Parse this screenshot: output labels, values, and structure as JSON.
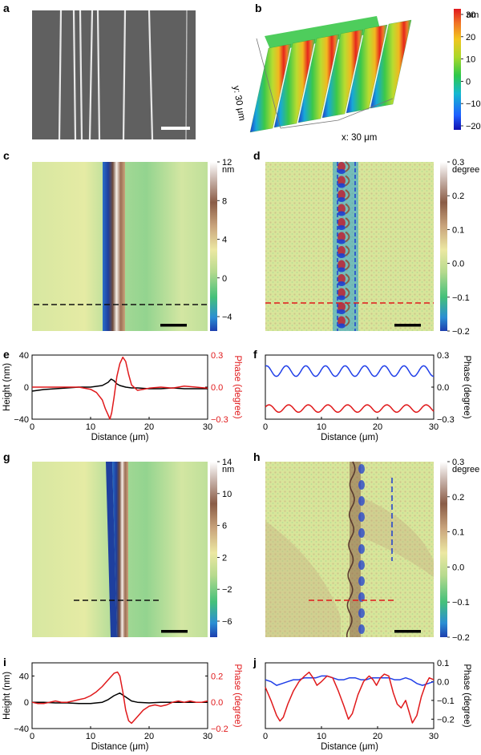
{
  "panel_letters": [
    "a",
    "b",
    "c",
    "d",
    "e",
    "f",
    "g",
    "h",
    "i",
    "j"
  ],
  "panel_b": {
    "xlabel": "x: 30 μm",
    "ylabel": "y: 30 μm",
    "colorbar_unit": "nm",
    "colorbar_ticks": [
      "30",
      "20",
      "10",
      "0",
      "−10",
      "−20"
    ]
  },
  "panel_c": {
    "colorbar_unit": "nm",
    "colorbar_ticks": [
      "12",
      "8",
      "4",
      "0",
      "−4"
    ]
  },
  "panel_d": {
    "colorbar_unit": "degree",
    "colorbar_ticks": [
      "0.3",
      "0.2",
      "0.1",
      "0.0",
      "−0.1",
      "−0.2"
    ]
  },
  "panel_g": {
    "colorbar_unit": "nm",
    "colorbar_ticks": [
      "14",
      "10",
      "6",
      "2",
      "−2",
      "−6"
    ]
  },
  "panel_h": {
    "colorbar_unit": "degree",
    "colorbar_ticks": [
      "0.3",
      "0.2",
      "0.1",
      "0.0",
      "−0.1",
      "−0.2"
    ]
  },
  "colors": {
    "height_line": "#000000",
    "phase_line": "#e0191b",
    "blue_line": "#1f3ee8"
  },
  "chart_data": [
    {
      "panel": "e",
      "type": "line",
      "xlabel": "Distance (μm)",
      "ylabel_left": "Height (nm)",
      "ylabel_right": "Phase (degree)",
      "xlim": [
        0,
        30
      ],
      "ylim_left": [
        -40,
        40
      ],
      "ylim_right": [
        -0.3,
        0.3
      ],
      "x_ticks": [
        "0",
        "10",
        "20",
        "30"
      ],
      "y_ticks_left": [
        "40",
        "0",
        "−40"
      ],
      "y_ticks_right": [
        "0.3",
        "0.0",
        "−0.3"
      ],
      "series": [
        {
          "axis": "left",
          "color": "#000000",
          "x": [
            0,
            2,
            4,
            6,
            8,
            10,
            11,
            12,
            13,
            13.5,
            14,
            14.5,
            15,
            16,
            17,
            18,
            20,
            22,
            24,
            26,
            28,
            30
          ],
          "y": [
            -5,
            -3,
            -2,
            -1,
            0,
            0,
            1,
            2,
            6,
            10,
            8,
            4,
            2,
            0,
            -1,
            -1,
            -2,
            -2,
            -1,
            -2,
            -2,
            -2
          ]
        },
        {
          "axis": "right",
          "color": "#e0191b",
          "x": [
            0,
            2,
            4,
            6,
            8,
            10,
            11,
            12,
            12.5,
            13,
            13.3,
            13.6,
            14,
            14.5,
            15,
            15.5,
            16,
            16.5,
            17,
            18,
            19,
            20,
            22,
            24,
            26,
            28,
            30
          ],
          "y": [
            0.0,
            0.0,
            0.0,
            0.0,
            0.0,
            -0.02,
            -0.05,
            -0.12,
            -0.2,
            -0.26,
            -0.3,
            -0.24,
            -0.1,
            0.1,
            0.22,
            0.28,
            0.24,
            0.12,
            0.02,
            -0.03,
            -0.02,
            -0.01,
            0.0,
            -0.01,
            0.01,
            0.0,
            -0.01
          ]
        }
      ]
    },
    {
      "panel": "f",
      "type": "line",
      "xlabel": "Distance (μm)",
      "ylabel_right": "Phase (degree)",
      "xlim": [
        0,
        30
      ],
      "ylim_right": [
        -0.3,
        0.3
      ],
      "x_ticks": [
        "0",
        "10",
        "20",
        "30"
      ],
      "y_ticks_right": [
        "0.3",
        "0.0",
        "−0.3"
      ],
      "series": [
        {
          "axis": "right",
          "color": "#1f3ee8",
          "wave": {
            "base": 0.15,
            "amplitude": 0.05,
            "period": 3.5,
            "phase": 1.2
          }
        },
        {
          "axis": "right",
          "color": "#e0191b",
          "wave": {
            "base": -0.2,
            "amplitude": 0.035,
            "period": 3.5,
            "phase": 0.4
          }
        }
      ]
    },
    {
      "panel": "i",
      "type": "line",
      "xlabel": "Distance (μm)",
      "ylabel_left": "Height (nm)",
      "ylabel_right": "Phase (degree)",
      "xlim": [
        0,
        30
      ],
      "ylim_left": [
        -40,
        60
      ],
      "ylim_right": [
        -0.2,
        0.3
      ],
      "x_ticks": [
        "0",
        "10",
        "20",
        "30"
      ],
      "y_ticks_left": [
        "40",
        "0",
        "−40"
      ],
      "y_ticks_right": [
        "0.2",
        "0.0",
        "−0.2"
      ],
      "series": [
        {
          "axis": "left",
          "color": "#000000",
          "x": [
            0,
            2,
            4,
            6,
            8,
            10,
            12,
            13,
            14,
            15,
            16,
            17,
            18,
            20,
            22,
            24,
            26,
            28,
            30
          ],
          "y": [
            0,
            0,
            -1,
            -1,
            -2,
            -2,
            0,
            4,
            10,
            14,
            8,
            2,
            0,
            -1,
            0,
            0,
            0,
            0,
            0
          ]
        },
        {
          "axis": "right",
          "color": "#e0191b",
          "x": [
            0,
            1,
            2,
            3,
            4,
            5,
            6,
            7,
            8,
            9,
            10,
            11,
            12,
            13,
            14,
            14.6,
            15,
            15.5,
            16,
            16.5,
            17,
            18,
            19,
            20,
            21,
            22,
            23,
            24,
            25,
            26,
            27,
            28,
            29,
            30
          ],
          "y": [
            0.0,
            -0.01,
            -0.01,
            0.0,
            0.01,
            0.0,
            0.0,
            0.01,
            0.02,
            0.03,
            0.05,
            0.08,
            0.12,
            0.17,
            0.22,
            0.23,
            0.2,
            0.08,
            -0.06,
            -0.14,
            -0.16,
            -0.11,
            -0.06,
            -0.03,
            -0.02,
            -0.03,
            -0.02,
            0.0,
            0.01,
            0.0,
            0.01,
            0.0,
            0.0,
            0.01
          ]
        }
      ]
    },
    {
      "panel": "j",
      "type": "line",
      "xlabel": "Distance (μm)",
      "ylabel_right": "Phase (degree)",
      "xlim": [
        0,
        30
      ],
      "ylim_right": [
        -0.25,
        0.1
      ],
      "x_ticks": [
        "0",
        "10",
        "20",
        "30"
      ],
      "y_ticks_right": [
        "0.1",
        "0.0",
        "−0.1",
        "−0.2"
      ],
      "series": [
        {
          "axis": "right",
          "color": "#1f3ee8",
          "x": [
            0,
            1,
            2,
            3,
            4,
            5,
            6,
            7,
            8,
            9,
            10,
            11,
            12,
            13,
            14,
            15,
            16,
            17,
            18,
            19,
            20,
            21,
            22,
            23,
            24,
            25,
            26,
            27,
            28,
            29,
            30
          ],
          "y": [
            0.01,
            0.0,
            -0.02,
            -0.01,
            0.0,
            0.01,
            0.01,
            0.02,
            0.02,
            0.02,
            0.03,
            0.03,
            0.02,
            0.01,
            0.01,
            0.02,
            0.02,
            0.01,
            0.01,
            0.02,
            0.02,
            0.02,
            0.02,
            0.01,
            0.01,
            0.02,
            0.01,
            -0.01,
            -0.02,
            -0.01,
            0.0
          ]
        },
        {
          "axis": "right",
          "color": "#e0191b",
          "x": [
            0,
            1,
            2,
            2.6,
            3.2,
            4,
            5,
            6,
            7,
            7.8,
            8.5,
            9.2,
            10,
            11,
            12,
            13,
            14,
            14.8,
            15.5,
            16.5,
            17.5,
            18.5,
            19.2,
            19.8,
            20.5,
            21.2,
            22,
            22.8,
            23.5,
            24.2,
            25,
            25.6,
            26.2,
            27,
            27.8,
            28.5,
            29.2,
            30
          ],
          "y": [
            -0.03,
            -0.1,
            -0.18,
            -0.21,
            -0.19,
            -0.12,
            -0.05,
            0.0,
            0.03,
            0.05,
            0.02,
            -0.02,
            0.0,
            0.03,
            0.02,
            -0.05,
            -0.13,
            -0.2,
            -0.17,
            -0.07,
            0.0,
            0.03,
            0.01,
            -0.02,
            0.02,
            0.04,
            0.03,
            -0.06,
            -0.12,
            -0.14,
            -0.1,
            -0.16,
            -0.22,
            -0.18,
            -0.08,
            -0.02,
            0.02,
            0.01
          ]
        }
      ]
    }
  ]
}
